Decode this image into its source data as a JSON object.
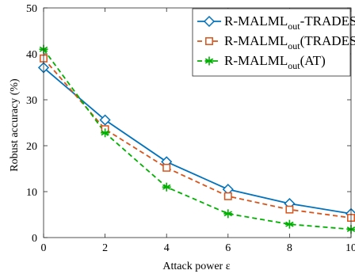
{
  "chart_data": {
    "type": "line",
    "title": "",
    "xlabel": "Attack power ε",
    "ylabel": "Robust accuracy (%)",
    "xlim": [
      0,
      10
    ],
    "ylim": [
      0,
      50
    ],
    "x_ticks": [
      0,
      2,
      4,
      6,
      8,
      10
    ],
    "y_ticks": [
      0,
      10,
      20,
      30,
      40,
      50
    ],
    "x": [
      0,
      2,
      4,
      6,
      8,
      10
    ],
    "grid": false,
    "legend_position": "top-right",
    "series": [
      {
        "name": "R-MALML_out-TRADES",
        "label_main": "R-MALML",
        "label_sub": "out",
        "label_suffix": "-TRADES",
        "values": [
          37.0,
          25.6,
          16.5,
          10.5,
          7.4,
          5.2
        ],
        "color": "#0072BD",
        "dash": "solid",
        "marker": "diamond"
      },
      {
        "name": "R-MALML_out(TRADES)",
        "label_main": "R-MALML",
        "label_sub": "out",
        "label_suffix": "(TRADES)",
        "values": [
          39.0,
          23.6,
          15.2,
          9.0,
          6.1,
          4.3
        ],
        "color": "#D95319",
        "dash": "dashed",
        "marker": "square"
      },
      {
        "name": "R-MALML_out(AT)",
        "label_main": "R-MALML",
        "label_sub": "out",
        "label_suffix": "(AT)",
        "values": [
          41.0,
          22.8,
          11.0,
          5.2,
          2.9,
          1.8
        ],
        "color": "#00B000",
        "dash": "dashed",
        "marker": "asterisk"
      }
    ]
  }
}
